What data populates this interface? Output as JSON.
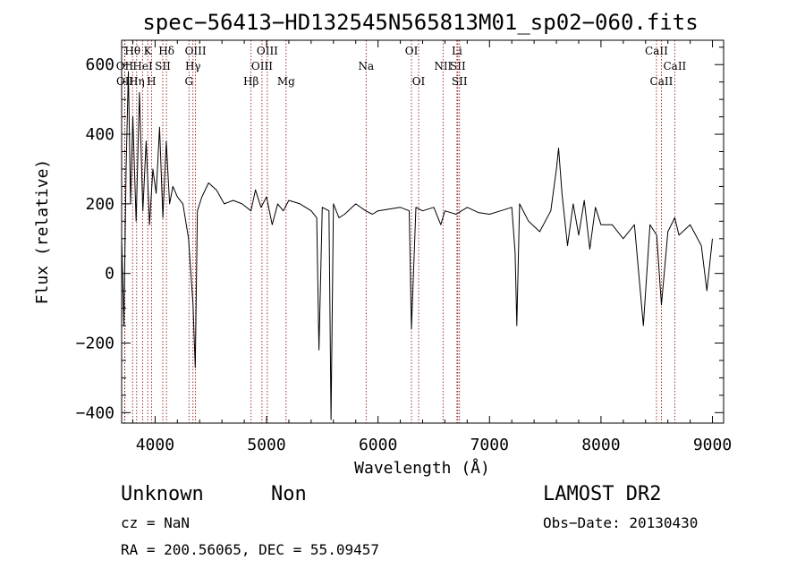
{
  "title": "spec−56413−HD132545N565813M01_sp02−060.fits",
  "info": {
    "class": "Unknown",
    "subclass": "Non",
    "survey": "LAMOST DR2",
    "cz": "cz = NaN",
    "obs_date": "Obs−Date: 20130430",
    "radec": "RA = 200.56065, DEC =  55.09457"
  },
  "chart_data": {
    "type": "line",
    "xlabel": "Wavelength (Å)",
    "ylabel": "Flux (relative)",
    "xlim": [
      3700,
      9100
    ],
    "ylim": [
      -430,
      670
    ],
    "x_ticks": [
      4000,
      5000,
      6000,
      7000,
      8000,
      9000
    ],
    "y_ticks": [
      -400,
      -200,
      0,
      200,
      400,
      600
    ],
    "y_tick_labels": [
      "−400",
      "−200",
      "0",
      "200",
      "400",
      "600"
    ],
    "line_color": "#000000",
    "marker_color": "#8b0000",
    "series": [
      {
        "x": [
          3700,
          3720,
          3740,
          3760,
          3780,
          3800,
          3830,
          3860,
          3890,
          3920,
          3950,
          3980,
          4010,
          4040,
          4070,
          4100,
          4130,
          4160,
          4200,
          4250,
          4300,
          4340,
          4360,
          4380,
          4420,
          4480,
          4550,
          4620,
          4700,
          4780,
          4860,
          4900,
          4950,
          5000,
          5050,
          5100,
          5150,
          5200,
          5300,
          5400,
          5450,
          5470,
          5500,
          5560,
          5578,
          5600,
          5650,
          5700,
          5800,
          5890,
          5950,
          6000,
          6100,
          6200,
          6280,
          6300,
          6340,
          6400,
          6500,
          6563,
          6600,
          6700,
          6800,
          6900,
          7000,
          7100,
          7200,
          7230,
          7245,
          7270,
          7350,
          7450,
          7550,
          7600,
          7620,
          7650,
          7700,
          7750,
          7800,
          7850,
          7900,
          7950,
          8000,
          8100,
          8200,
          8300,
          8380,
          8440,
          8500,
          8542,
          8600,
          8662,
          8700,
          8800,
          8900,
          8950,
          9000
        ],
        "y": [
          100,
          -150,
          300,
          580,
          200,
          450,
          150,
          520,
          180,
          380,
          140,
          300,
          230,
          420,
          160,
          380,
          200,
          250,
          220,
          200,
          100,
          -90,
          -270,
          180,
          220,
          260,
          240,
          200,
          210,
          200,
          180,
          240,
          190,
          220,
          140,
          200,
          180,
          210,
          200,
          180,
          160,
          -220,
          190,
          180,
          -420,
          200,
          160,
          170,
          200,
          180,
          170,
          180,
          185,
          190,
          180,
          -160,
          190,
          180,
          190,
          140,
          180,
          170,
          190,
          175,
          170,
          180,
          190,
          60,
          -150,
          200,
          150,
          120,
          180,
          300,
          360,
          230,
          80,
          200,
          110,
          210,
          70,
          190,
          140,
          140,
          100,
          140,
          -150,
          140,
          110,
          -90,
          120,
          160,
          110,
          140,
          80,
          -50,
          100
        ]
      }
    ],
    "lines": [
      {
        "name": "Hθ",
        "wave": 3798,
        "row": 0
      },
      {
        "name": "OII",
        "wave": 3727,
        "row": 1
      },
      {
        "name": "OII",
        "wave": 3729,
        "row": 2
      },
      {
        "name": "K",
        "wave": 3934,
        "row": 0
      },
      {
        "name": "HeI",
        "wave": 3889,
        "row": 1
      },
      {
        "name": "Hη",
        "wave": 3835,
        "row": 2
      },
      {
        "name": "Hδ",
        "wave": 4102,
        "row": 0
      },
      {
        "name": "SII",
        "wave": 4069,
        "row": 1
      },
      {
        "name": "H",
        "wave": 3968,
        "row": 2
      },
      {
        "name": "OIII",
        "wave": 4363,
        "row": 0
      },
      {
        "name": "Hγ",
        "wave": 4340,
        "row": 1
      },
      {
        "name": "G",
        "wave": 4304,
        "row": 2
      },
      {
        "name": "OIII",
        "wave": 5007,
        "row": 0
      },
      {
        "name": "OIII",
        "wave": 4959,
        "row": 1
      },
      {
        "name": "Hβ",
        "wave": 4861,
        "row": 2
      },
      {
        "name": "Mg",
        "wave": 5175,
        "row": 2
      },
      {
        "name": "Na",
        "wave": 5893,
        "row": 1
      },
      {
        "name": "OI",
        "wave": 6300,
        "row": 0
      },
      {
        "name": "OI",
        "wave": 6364,
        "row": 2
      },
      {
        "name": "Li",
        "wave": 6708,
        "row": 0
      },
      {
        "name": "NII",
        "wave": 6583,
        "row": 1
      },
      {
        "name": "SII",
        "wave": 6716,
        "row": 1
      },
      {
        "name": "SII",
        "wave": 6731,
        "row": 2
      },
      {
        "name": "CaII",
        "wave": 8498,
        "row": 0
      },
      {
        "name": "CaII",
        "wave": 8662,
        "row": 1
      },
      {
        "name": "CaII",
        "wave": 8542,
        "row": 2
      }
    ]
  }
}
